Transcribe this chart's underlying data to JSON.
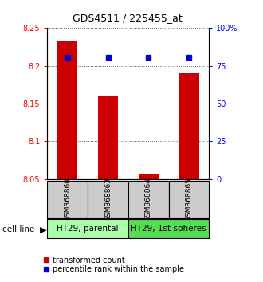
{
  "title": "GDS4511 / 225455_at",
  "samples": [
    "GSM368860",
    "GSM368863",
    "GSM368864",
    "GSM368865"
  ],
  "red_values": [
    8.233,
    8.161,
    8.057,
    8.19
  ],
  "blue_values": [
    80.5,
    80.5,
    80.5,
    80.5
  ],
  "ylim_left": [
    8.05,
    8.25
  ],
  "ylim_right": [
    0,
    100
  ],
  "yticks_left": [
    8.05,
    8.1,
    8.15,
    8.2,
    8.25
  ],
  "yticks_right": [
    0,
    25,
    50,
    75,
    100
  ],
  "yticklabels_right": [
    "0",
    "25",
    "50",
    "75",
    "100%"
  ],
  "groups": [
    {
      "label": "HT29, parental",
      "indices": [
        0,
        1
      ],
      "color": "#aaffaa"
    },
    {
      "label": "HT29, 1st spheres",
      "indices": [
        2,
        3
      ],
      "color": "#55dd55"
    }
  ],
  "bar_color": "#cc0000",
  "dot_color": "#0000cc",
  "bar_width": 0.5,
  "grid_color": "#555555",
  "plot_bg_color": "#ffffff",
  "legend_red_label": "transformed count",
  "legend_blue_label": "percentile rank within the sample",
  "cell_line_label": "cell line",
  "sample_box_color": "#cccccc",
  "title_fontsize": 9
}
